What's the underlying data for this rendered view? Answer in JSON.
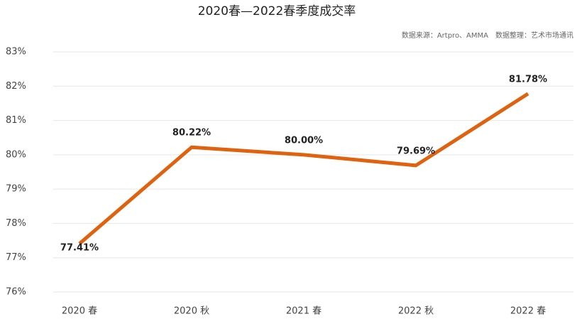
{
  "chart_data": {
    "type": "line",
    "title": "2020春—2022春季度成交率",
    "subtitle": "数据来源：Artpro、AMMA　数据整理：艺术市场通讯",
    "categories": [
      "2020 春",
      "2020 秋",
      "2021 春",
      "2022 秋",
      "2022 春"
    ],
    "values": [
      77.41,
      80.22,
      80.0,
      79.69,
      81.78
    ],
    "value_labels": [
      "77.41%",
      "80.22%",
      "80.00%",
      "79.69%",
      "81.78%"
    ],
    "color": "#e0620f",
    "ylim": [
      76,
      83
    ],
    "yticks": [
      {
        "value": 76,
        "label": "76%"
      },
      {
        "value": 77,
        "label": "77%"
      },
      {
        "value": 78,
        "label": "78%"
      },
      {
        "value": 79,
        "label": "79%"
      },
      {
        "value": 80,
        "label": "80%"
      },
      {
        "value": 81,
        "label": "81%"
      },
      {
        "value": 82,
        "label": "82%"
      },
      {
        "value": 83,
        "label": "83%"
      }
    ],
    "grid": true
  }
}
